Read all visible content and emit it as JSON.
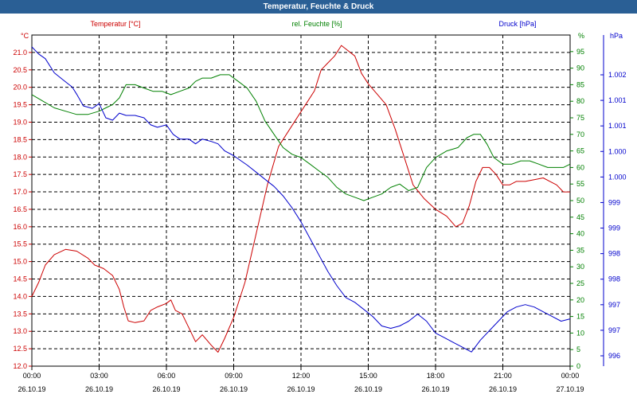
{
  "window": {
    "title": "Temperatur, Feuchte & Druck"
  },
  "chart_data": {
    "type": "line",
    "title": "Temperatur, Feuchte & Druck",
    "x_labels": [
      {
        "time": "00:00",
        "date": "26.10.19"
      },
      {
        "time": "03:00",
        "date": "26.10.19"
      },
      {
        "time": "06:00",
        "date": "26.10.19"
      },
      {
        "time": "09:00",
        "date": "26.10.19"
      },
      {
        "time": "12:00",
        "date": "26.10.19"
      },
      {
        "time": "15:00",
        "date": "26.10.19"
      },
      {
        "time": "18:00",
        "date": "26.10.19"
      },
      {
        "time": "21:00",
        "date": "26.10.19"
      },
      {
        "time": "00:00",
        "date": "27.10.19"
      }
    ],
    "x_range_hours": [
      0,
      24
    ],
    "axes": {
      "temperature": {
        "label": "Temperatur [°C]",
        "unit_label": "°C",
        "range": [
          12.0,
          21.5
        ],
        "ticks": [
          "12.0",
          "12.5",
          "13.0",
          "13.5",
          "14.0",
          "14.5",
          "15.0",
          "15.5",
          "16.0",
          "16.5",
          "17.0",
          "17.5",
          "18.0",
          "18.5",
          "19.0",
          "19.5",
          "20.0",
          "20.5",
          "21.0"
        ],
        "color": "#cc0000"
      },
      "humidity": {
        "label": "rel. Feuchte [%]",
        "unit_label": "%",
        "range": [
          0,
          100
        ],
        "ticks": [
          "0",
          "5",
          "10",
          "15",
          "20",
          "25",
          "30",
          "35",
          "40",
          "45",
          "50",
          "55",
          "60",
          "65",
          "70",
          "75",
          "80",
          "85",
          "90",
          "95"
        ],
        "color": "#008000"
      },
      "pressure": {
        "label": "Druck [hPa]",
        "unit_label": "hPa",
        "range": [
          995.5,
          1002.5
        ],
        "ticks": [
          "996",
          "997",
          "997",
          "998",
          "998",
          "999",
          "999",
          "1.000",
          "1.000",
          "1.001",
          "1.001",
          "1.002"
        ],
        "color": "#0000cc"
      }
    },
    "series": [
      {
        "name": "Temperatur",
        "axis": "temperature",
        "color": "#cc0000",
        "x": [
          0,
          0.3,
          0.6,
          1.0,
          1.5,
          2.0,
          2.5,
          2.8,
          3.2,
          3.6,
          3.9,
          4.1,
          4.3,
          4.6,
          5.0,
          5.3,
          5.6,
          6.0,
          6.2,
          6.4,
          6.7,
          7.0,
          7.3,
          7.6,
          8.0,
          8.3,
          8.6,
          9.0,
          9.5,
          10.0,
          10.5,
          11.0,
          11.5,
          12.0,
          12.3,
          12.6,
          12.9,
          13.2,
          13.5,
          13.8,
          14.0,
          14.4,
          14.7,
          15.0,
          15.4,
          15.8,
          16.2,
          16.6,
          17.0,
          17.5,
          18.0,
          18.5,
          18.9,
          19.2,
          19.5,
          19.8,
          20.1,
          20.4,
          20.7,
          21.0,
          21.3,
          21.6,
          22.0,
          22.4,
          22.8,
          23.1,
          23.4,
          23.7,
          24.0
        ],
        "values": [
          14.0,
          14.4,
          14.9,
          15.2,
          15.35,
          15.3,
          15.1,
          14.9,
          14.8,
          14.6,
          14.2,
          13.7,
          13.3,
          13.25,
          13.3,
          13.6,
          13.7,
          13.8,
          13.9,
          13.6,
          13.5,
          13.1,
          12.7,
          12.9,
          12.6,
          12.4,
          12.8,
          13.4,
          14.4,
          15.8,
          17.2,
          18.3,
          18.8,
          19.3,
          19.6,
          19.9,
          20.5,
          20.7,
          20.9,
          21.2,
          21.1,
          20.9,
          20.4,
          20.1,
          19.8,
          19.5,
          18.8,
          18.0,
          17.2,
          16.8,
          16.5,
          16.3,
          16.0,
          16.1,
          16.6,
          17.3,
          17.7,
          17.7,
          17.5,
          17.2,
          17.2,
          17.3,
          17.3,
          17.35,
          17.4,
          17.3,
          17.2,
          17.0,
          17.0
        ]
      },
      {
        "name": "rel. Feuchte",
        "axis": "humidity",
        "color": "#008000",
        "x": [
          0,
          0.5,
          1.0,
          1.5,
          2.0,
          2.5,
          3.0,
          3.3,
          3.6,
          3.9,
          4.2,
          4.6,
          5.0,
          5.4,
          5.8,
          6.2,
          6.6,
          7.0,
          7.3,
          7.6,
          8.0,
          8.4,
          8.8,
          9.2,
          9.6,
          10.0,
          10.4,
          10.8,
          11.2,
          11.6,
          12.0,
          12.4,
          12.8,
          13.2,
          13.6,
          14.0,
          14.4,
          14.8,
          15.2,
          15.6,
          16.0,
          16.4,
          16.8,
          17.2,
          17.6,
          18.0,
          18.5,
          19.0,
          19.4,
          19.7,
          20.0,
          20.3,
          20.6,
          21.0,
          21.4,
          21.8,
          22.2,
          22.6,
          23.0,
          23.4,
          23.7,
          24.0
        ],
        "values": [
          82,
          80,
          78,
          77,
          76,
          76,
          77,
          78,
          79,
          81,
          85,
          85,
          84,
          83,
          83,
          82,
          83,
          84,
          86,
          87,
          87,
          88,
          88,
          86,
          84,
          80,
          74,
          70,
          66,
          64,
          63,
          61,
          59,
          57,
          54,
          52,
          51,
          50,
          51,
          52,
          54,
          55,
          53,
          54,
          60,
          63,
          65,
          66,
          69,
          70,
          70,
          67,
          63,
          61,
          61,
          62,
          62,
          61,
          60,
          60,
          60,
          61
        ]
      },
      {
        "name": "Druck",
        "axis": "pressure",
        "color": "#0000cc",
        "x": [
          0,
          0.3,
          0.6,
          1.0,
          1.4,
          1.8,
          2.0,
          2.3,
          2.7,
          3.0,
          3.3,
          3.6,
          3.9,
          4.2,
          4.6,
          5.0,
          5.3,
          5.6,
          6.0,
          6.3,
          6.6,
          7.0,
          7.3,
          7.6,
          8.0,
          8.3,
          8.6,
          9.0,
          9.3,
          9.6,
          10.0,
          10.4,
          10.8,
          11.2,
          11.6,
          12.0,
          12.4,
          12.8,
          13.2,
          13.6,
          14.0,
          14.4,
          14.8,
          15.2,
          15.6,
          16.0,
          16.4,
          16.8,
          17.2,
          17.6,
          18.0,
          18.4,
          18.8,
          19.2,
          19.6,
          20.0,
          20.4,
          20.8,
          21.2,
          21.6,
          22.0,
          22.4,
          22.8,
          23.2,
          23.6,
          24.0
        ],
        "values": [
          1002.25,
          1002.1,
          1002.0,
          1001.7,
          1001.55,
          1001.4,
          1001.25,
          1001.0,
          1000.95,
          1001.05,
          1000.75,
          1000.7,
          1000.85,
          1000.8,
          1000.8,
          1000.75,
          1000.6,
          1000.55,
          1000.6,
          1000.4,
          1000.3,
          1000.3,
          1000.2,
          1000.3,
          1000.25,
          1000.2,
          1000.05,
          999.95,
          999.85,
          999.75,
          999.6,
          999.45,
          999.3,
          999.1,
          998.85,
          998.55,
          998.2,
          997.85,
          997.5,
          997.2,
          996.95,
          996.85,
          996.7,
          996.55,
          996.35,
          996.3,
          996.35,
          996.45,
          996.6,
          996.45,
          996.2,
          996.1,
          996.0,
          995.9,
          995.8,
          996.05,
          996.25,
          996.45,
          996.65,
          996.75,
          996.8,
          996.75,
          996.65,
          996.55,
          996.45,
          996.5
        ]
      }
    ]
  }
}
